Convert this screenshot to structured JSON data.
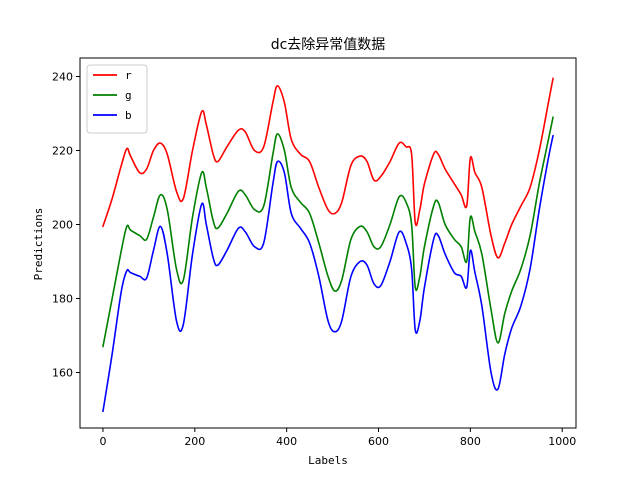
{
  "chart_data": {
    "type": "line",
    "title": "dc去除异常值数据",
    "xlabel": "Labels",
    "ylabel": "Predictions",
    "xlim": [
      -50,
      1030
    ],
    "ylim": [
      145,
      245
    ],
    "xticks": [
      0,
      200,
      400,
      600,
      800,
      1000
    ],
    "yticks": [
      160,
      180,
      200,
      220,
      240
    ],
    "grid": false,
    "legend_position": "top-left",
    "series": [
      {
        "name": "r",
        "color": "#ff0000",
        "x": [
          0,
          20,
          40,
          52,
          60,
          80,
          95,
          110,
          125,
          140,
          160,
          175,
          195,
          215,
          225,
          240,
          250,
          270,
          295,
          310,
          330,
          350,
          370,
          380,
          395,
          410,
          430,
          450,
          470,
          490,
          505,
          520,
          540,
          560,
          575,
          590,
          605,
          625,
          645,
          660,
          672,
          680,
          690,
          700,
          720,
          730,
          745,
          765,
          780,
          792,
          800,
          810,
          825,
          845,
          860,
          875,
          890,
          910,
          930,
          950,
          970,
          980
        ],
        "y": [
          199.5,
          207,
          216,
          220.5,
          218.5,
          214,
          215,
          220,
          222,
          219,
          209,
          207,
          220,
          230.5,
          227,
          219,
          217,
          221,
          225.5,
          225,
          220,
          221,
          233,
          237.5,
          233,
          223,
          219,
          217,
          210,
          204,
          203,
          206,
          216,
          218.5,
          217,
          212,
          213,
          217,
          222,
          221,
          219,
          200.5,
          204,
          211,
          219,
          219,
          215,
          211,
          208,
          205,
          218,
          214,
          210,
          197,
          191,
          195,
          200,
          205,
          210,
          220,
          233,
          239.5
        ],
        "values": [
          199.5,
          207,
          216,
          220.5,
          218.5,
          214,
          215,
          220,
          222,
          219,
          209,
          207,
          220,
          230.5,
          227,
          219,
          217,
          221,
          225.5,
          225,
          220,
          221,
          233,
          237.5,
          233,
          223,
          219,
          217,
          210,
          204,
          203,
          206,
          216,
          218.5,
          217,
          212,
          213,
          217,
          222,
          221,
          219,
          200.5,
          204,
          211,
          219,
          219,
          215,
          211,
          208,
          205,
          218,
          214,
          210,
          197,
          191,
          195,
          200,
          205,
          210,
          220,
          233,
          239.5
        ]
      },
      {
        "name": "g",
        "color": "#008000",
        "x": [
          0,
          20,
          40,
          52,
          60,
          80,
          95,
          110,
          125,
          140,
          160,
          175,
          195,
          215,
          225,
          240,
          250,
          270,
          295,
          310,
          330,
          350,
          370,
          380,
          395,
          410,
          430,
          450,
          470,
          490,
          505,
          520,
          540,
          560,
          575,
          590,
          605,
          625,
          645,
          660,
          672,
          680,
          690,
          700,
          720,
          730,
          745,
          765,
          780,
          792,
          800,
          810,
          825,
          845,
          860,
          875,
          890,
          910,
          930,
          950,
          970,
          980
        ],
        "y": [
          167,
          180,
          193,
          199.5,
          198.5,
          197,
          196,
          202,
          208,
          204,
          188,
          185,
          202,
          214,
          210,
          201,
          199,
          203,
          209,
          208,
          204,
          205,
          219,
          224.5,
          220,
          210,
          206,
          203,
          195,
          186,
          182,
          185,
          196,
          199.5,
          198,
          194,
          194,
          200,
          207.5,
          206,
          200,
          183,
          186,
          194,
          205,
          206,
          200,
          196,
          194,
          190,
          202,
          198,
          192,
          177,
          168,
          176,
          182,
          188,
          197,
          211,
          223,
          229
        ],
        "values": [
          167,
          180,
          193,
          199.5,
          198.5,
          197,
          196,
          202,
          208,
          204,
          188,
          185,
          202,
          214,
          210,
          201,
          199,
          203,
          209,
          208,
          204,
          205,
          219,
          224.5,
          220,
          210,
          206,
          203,
          195,
          186,
          182,
          185,
          196,
          199.5,
          198,
          194,
          194,
          200,
          207.5,
          206,
          200,
          183,
          186,
          194,
          205,
          206,
          200,
          196,
          194,
          190,
          202,
          198,
          192,
          177,
          168,
          176,
          182,
          188,
          197,
          211,
          223,
          229
        ]
      },
      {
        "name": "b",
        "color": "#0000ff",
        "x": [
          0,
          20,
          40,
          52,
          60,
          80,
          95,
          110,
          125,
          140,
          160,
          175,
          195,
          215,
          225,
          240,
          250,
          270,
          295,
          310,
          330,
          350,
          370,
          380,
          395,
          410,
          430,
          450,
          470,
          490,
          505,
          520,
          540,
          560,
          575,
          590,
          605,
          625,
          645,
          660,
          672,
          680,
          690,
          700,
          720,
          730,
          745,
          765,
          780,
          792,
          800,
          810,
          825,
          845,
          860,
          875,
          890,
          910,
          930,
          950,
          970,
          980
        ],
        "y": [
          149.5,
          165,
          182,
          187.5,
          187,
          186,
          185.5,
          193,
          199.5,
          192,
          174,
          173,
          192,
          205.5,
          200,
          191,
          189,
          193,
          199,
          198,
          194,
          195,
          211,
          217,
          214,
          203,
          199,
          195,
          186,
          174,
          171,
          174,
          186,
          190,
          189,
          184,
          183.5,
          190,
          198,
          195,
          188,
          171.5,
          174,
          183,
          196,
          197,
          192,
          187,
          186,
          183,
          193,
          187,
          178,
          160,
          155.5,
          165,
          172,
          178,
          188,
          204,
          218,
          224
        ],
        "values": [
          149.5,
          165,
          182,
          187.5,
          187,
          186,
          185.5,
          193,
          199.5,
          192,
          174,
          173,
          192,
          205.5,
          200,
          191,
          189,
          193,
          199,
          198,
          194,
          195,
          211,
          217,
          214,
          203,
          199,
          195,
          186,
          174,
          171,
          174,
          186,
          190,
          189,
          184,
          183.5,
          190,
          198,
          195,
          188,
          171.5,
          174,
          183,
          196,
          197,
          192,
          187,
          186,
          183,
          193,
          187,
          178,
          160,
          155.5,
          165,
          172,
          178,
          188,
          204,
          218,
          224
        ]
      }
    ]
  }
}
